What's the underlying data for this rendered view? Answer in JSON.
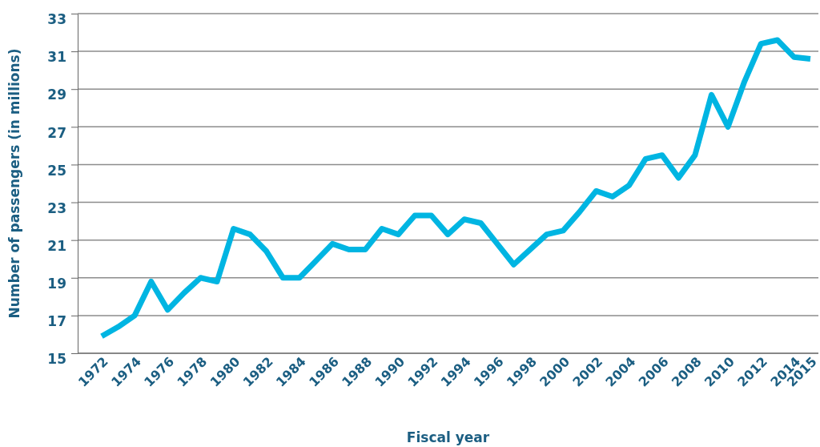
{
  "chart_data": {
    "type": "line",
    "xlabel": "Fiscal year",
    "ylabel": "Number of passengers (in millions)",
    "categories": [
      "1972",
      null,
      "1974",
      null,
      "1976",
      null,
      "1978",
      null,
      "1980",
      null,
      "1982",
      null,
      "1984",
      null,
      "1986",
      null,
      "1988",
      null,
      "1990",
      null,
      "1992",
      null,
      "1994",
      null,
      "1996",
      null,
      "1998",
      null,
      "2000",
      null,
      "2002",
      null,
      "2004",
      null,
      "2006",
      null,
      "2008",
      null,
      "2010",
      null,
      "2012",
      null,
      "2014",
      "2015"
    ],
    "series": [
      {
        "color": "#00b5e2",
        "values": [
          15.9,
          16.4,
          17.0,
          18.8,
          17.3,
          18.2,
          19.0,
          18.8,
          21.6,
          21.3,
          20.4,
          19.0,
          19.0,
          19.9,
          20.8,
          20.5,
          20.5,
          21.6,
          21.3,
          22.3,
          22.3,
          21.3,
          22.1,
          21.9,
          20.8,
          19.7,
          20.5,
          21.3,
          21.5,
          22.5,
          23.6,
          23.3,
          23.9,
          25.3,
          25.5,
          24.3,
          25.5,
          28.7,
          27.0,
          29.4,
          31.4,
          31.6,
          30.7,
          30.6
        ]
      }
    ],
    "ylim": [
      15,
      33
    ],
    "yticks": [
      15,
      17,
      19,
      21,
      23,
      25,
      27,
      29,
      31,
      33
    ],
    "grid": "y",
    "marker": "none",
    "line_style": "solid"
  }
}
